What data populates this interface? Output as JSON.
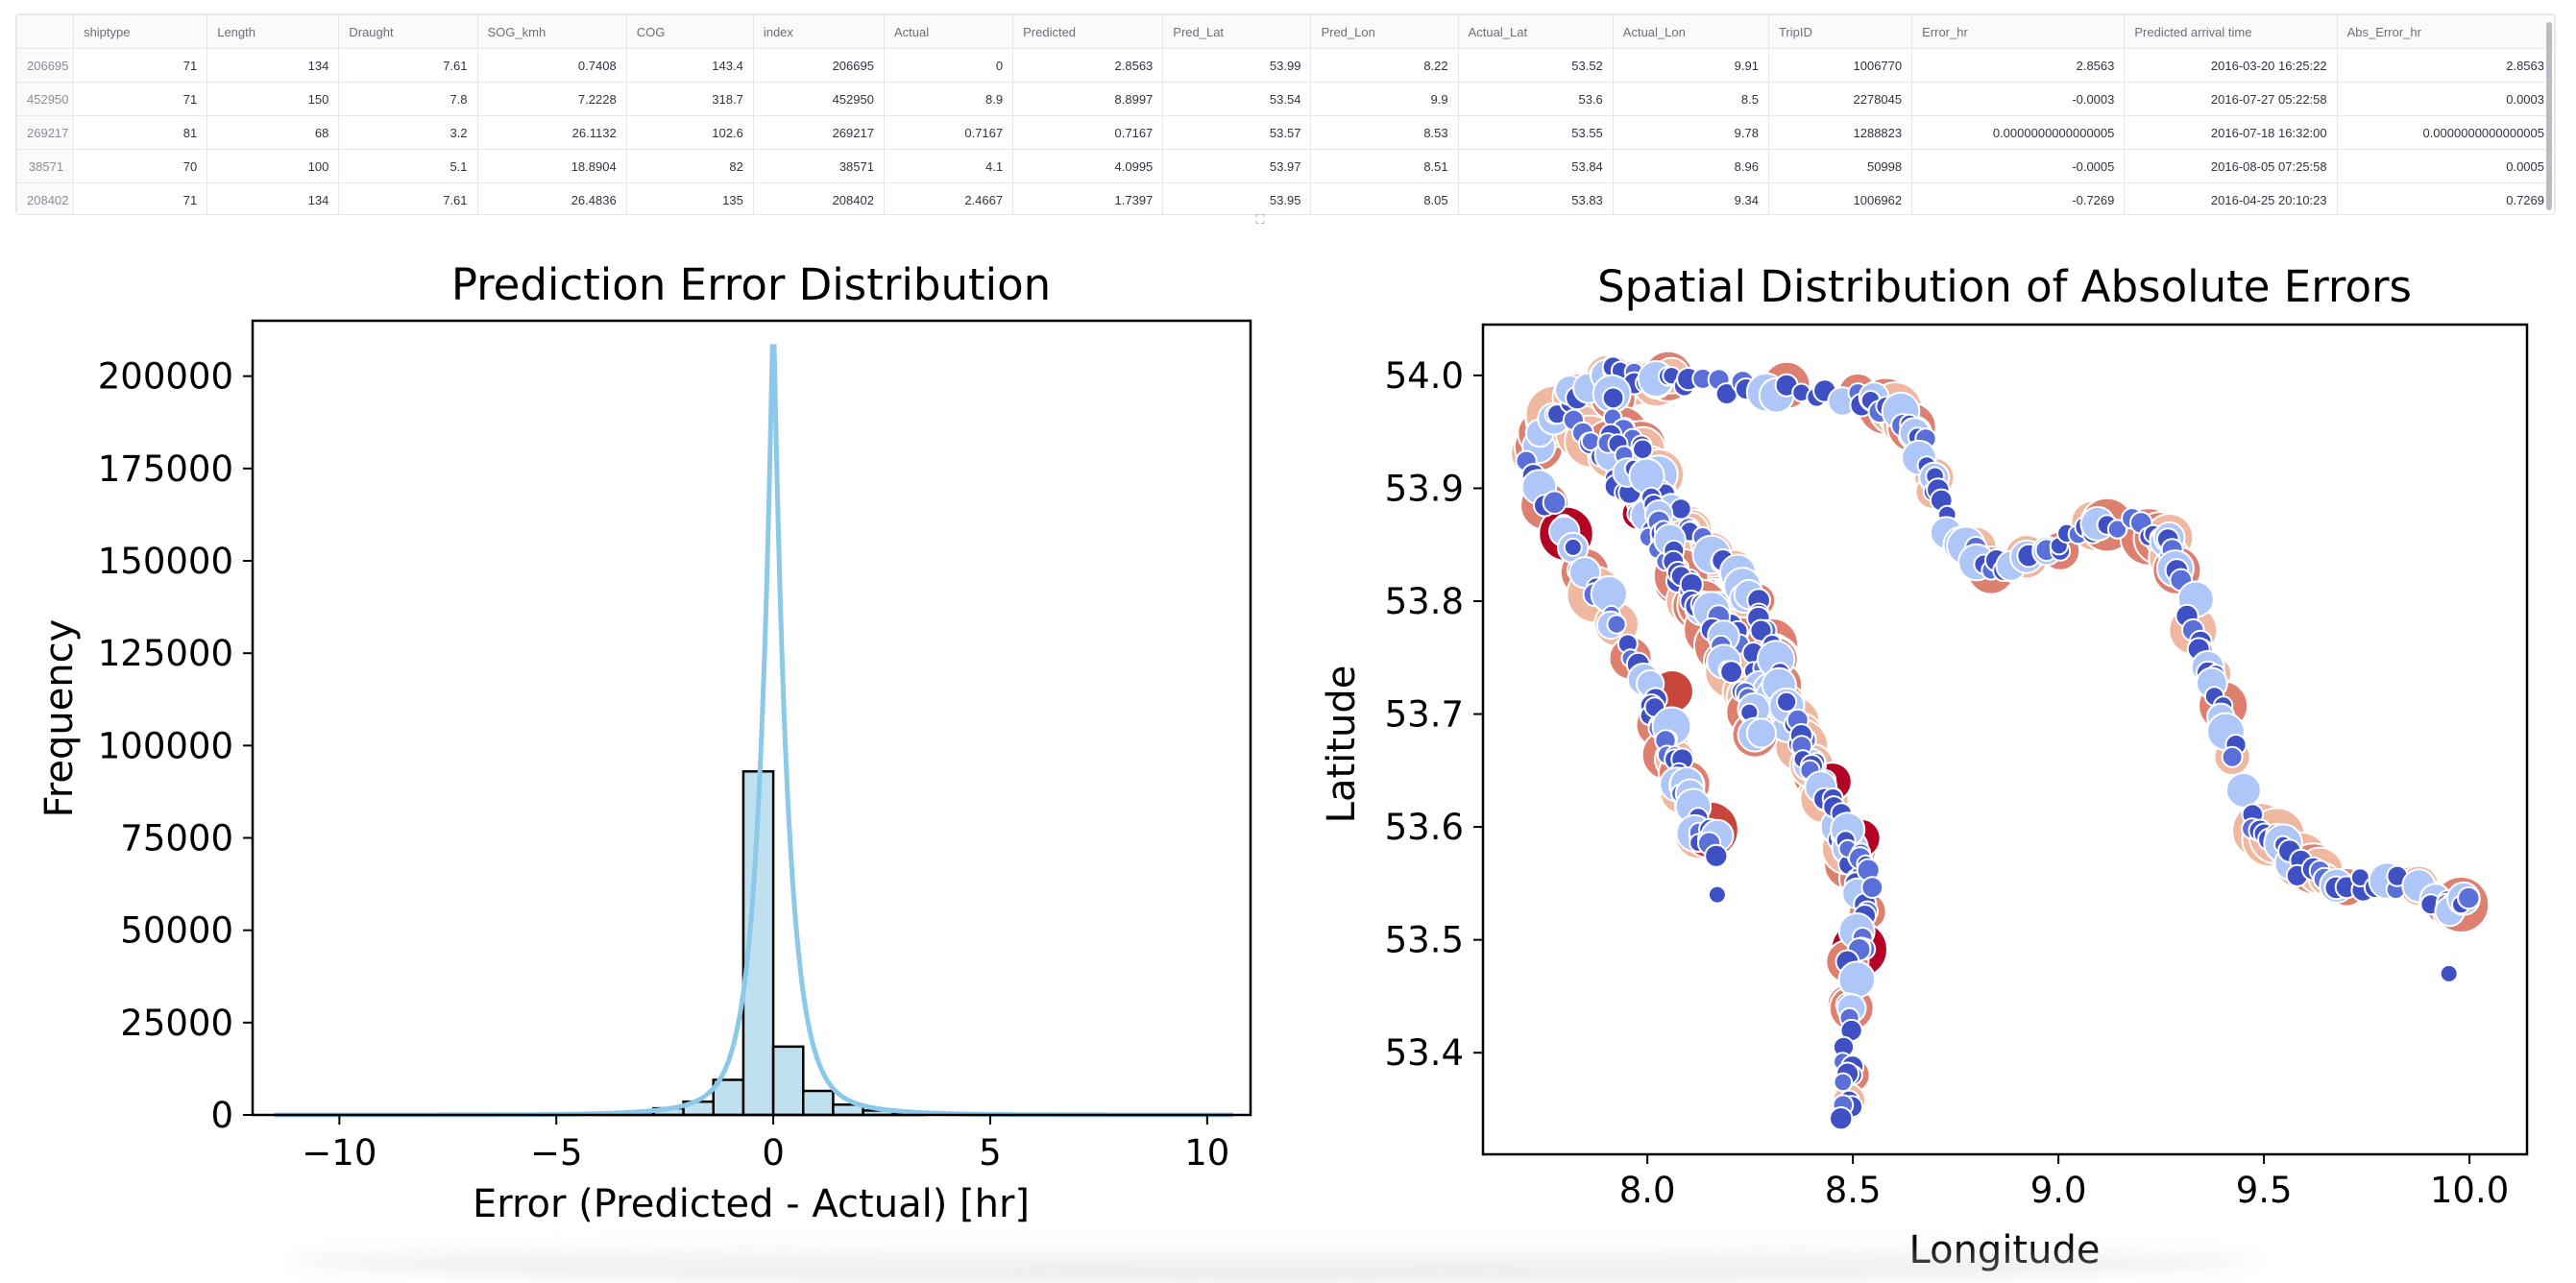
{
  "table": {
    "columns": [
      "",
      "shiptype",
      "Length",
      "Draught",
      "SOG_kmh",
      "COG",
      "index",
      "Actual",
      "Predicted",
      "Pred_Lat",
      "Pred_Lon",
      "Actual_Lat",
      "Actual_Lon",
      "TripID",
      "Error_hr",
      "Predicted arrival time",
      "Abs_Error_hr"
    ],
    "rows": [
      [
        "206695",
        "71",
        "134",
        "7.61",
        "0.7408",
        "143.4",
        "206695",
        "0",
        "2.8563",
        "53.99",
        "8.22",
        "53.52",
        "9.91",
        "1006770",
        "2.8563",
        "2016-03-20 16:25:22",
        "2.8563"
      ],
      [
        "452950",
        "71",
        "150",
        "7.8",
        "7.2228",
        "318.7",
        "452950",
        "8.9",
        "8.8997",
        "53.54",
        "9.9",
        "53.6",
        "8.5",
        "2278045",
        "-0.0003",
        "2016-07-27 05:22:58",
        "0.0003"
      ],
      [
        "269217",
        "81",
        "68",
        "3.2",
        "26.1132",
        "102.6",
        "269217",
        "0.7167",
        "0.7167",
        "53.57",
        "8.53",
        "53.55",
        "9.78",
        "1288823",
        "0.0000000000000005",
        "2016-07-18 16:32:00",
        "0.0000000000000005"
      ],
      [
        "38571",
        "70",
        "100",
        "5.1",
        "18.8904",
        "82",
        "38571",
        "4.1",
        "4.0995",
        "53.97",
        "8.51",
        "53.84",
        "8.96",
        "50998",
        "-0.0005",
        "2016-08-05 07:25:58",
        "0.0005"
      ],
      [
        "208402",
        "71",
        "134",
        "7.61",
        "26.4836",
        "135",
        "208402",
        "2.4667",
        "1.7397",
        "53.95",
        "8.05",
        "53.83",
        "9.34",
        "1006962",
        "-0.7269",
        "2016-04-25 20:10:23",
        "0.7269"
      ]
    ],
    "expand_icon": "expand-icon"
  },
  "chart_data": [
    {
      "type": "bar",
      "title": "Prediction Error Distribution",
      "xlabel": "Error (Predicted - Actual) [hr]",
      "ylabel": "Frequency",
      "xlim": [
        -12,
        11
      ],
      "ylim": [
        0,
        215000
      ],
      "xticks": [
        "−10",
        "−5",
        "0",
        "5",
        "10"
      ],
      "xtick_values": [
        -10,
        -5,
        0,
        5,
        10
      ],
      "yticks": [
        "0",
        "25000",
        "50000",
        "75000",
        "100000",
        "125000",
        "150000",
        "175000",
        "200000"
      ],
      "ytick_values": [
        0,
        25000,
        50000,
        75000,
        100000,
        125000,
        150000,
        175000,
        200000
      ],
      "bin_width": 0.69,
      "bin_left_edges": [
        -4.14,
        -3.45,
        -2.76,
        -2.07,
        -1.38,
        -0.69,
        0,
        0.69,
        1.38,
        2.07,
        2.76
      ],
      "values": [
        300,
        800,
        1800,
        3600,
        9500,
        93000,
        18500,
        6500,
        2800,
        1200,
        400
      ],
      "kde_peak": 208000,
      "bar_color": "#bfe0ef",
      "kde_color": "#8cc8e8",
      "grid": false,
      "legend": "none"
    },
    {
      "type": "scatter",
      "title": "Spatial Distribution of Absolute Errors",
      "xlabel": "Longitude",
      "ylabel": "Latitude",
      "xlim": [
        7.6,
        10.14
      ],
      "ylim": [
        53.31,
        54.045
      ],
      "xticks": [
        "8.0",
        "8.5",
        "9.0",
        "9.5",
        "10.0"
      ],
      "xtick_values": [
        8.0,
        8.5,
        9.0,
        9.5,
        10.0
      ],
      "yticks": [
        "53.4",
        "53.5",
        "53.6",
        "53.7",
        "53.8",
        "53.9",
        "54.0"
      ],
      "ytick_values": [
        53.4,
        53.5,
        53.6,
        53.7,
        53.8,
        53.9,
        54.0
      ],
      "colormap": "coolwarm",
      "colors": [
        "#3f4fc4",
        "#5a6fd8",
        "#7f9cee",
        "#aec7f8",
        "#dcdde1",
        "#f0b8a0",
        "#dd8070",
        "#c8453b",
        "#b40426"
      ],
      "grid": false,
      "legend": "none"
    }
  ]
}
